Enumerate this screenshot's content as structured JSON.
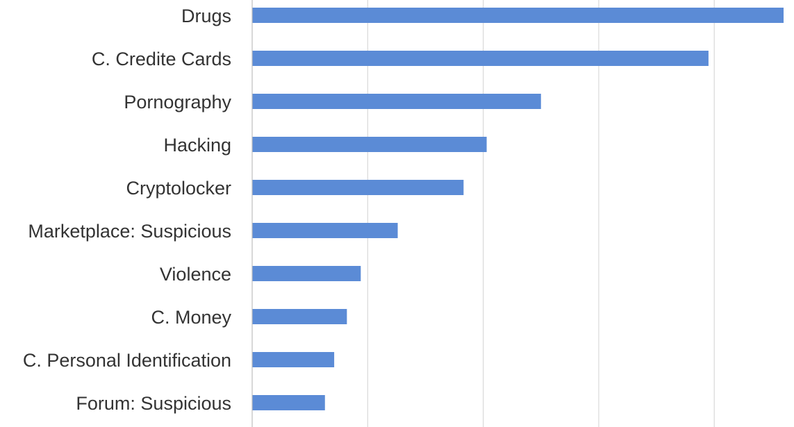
{
  "chart_data": {
    "type": "bar",
    "orientation": "horizontal",
    "categories": [
      "Drugs",
      "C. Credite Cards",
      "Pornography",
      "Hacking",
      "Cryptolocker",
      "Marketplace: Suspicious",
      "Violence",
      "C. Money",
      "C. Personal Identification",
      "Forum: Suspicious"
    ],
    "values": [
      4.6,
      3.95,
      2.5,
      2.03,
      1.83,
      1.26,
      0.94,
      0.82,
      0.71,
      0.63
    ],
    "xlim": [
      0,
      4.6
    ],
    "gridlines": [
      0,
      1,
      2,
      3,
      4
    ],
    "tick_labels_visible": false,
    "grid": true,
    "bar_color": "#5b8bd6",
    "title": "",
    "xlabel": "",
    "ylabel": ""
  }
}
